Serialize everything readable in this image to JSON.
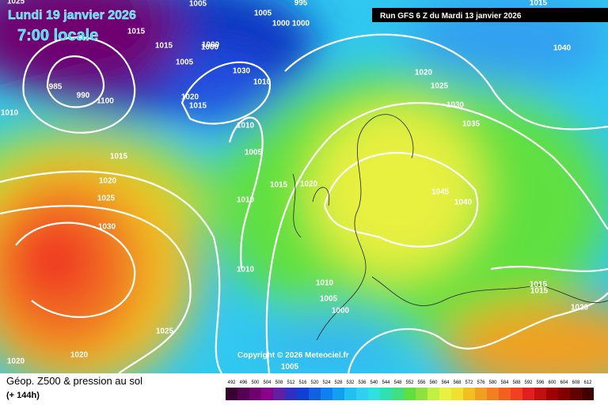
{
  "header": {
    "date": "Lundi 19 janvier 2026",
    "time": "7:00 locale",
    "run": "Run GFS 6 Z du Mardi 13 janvier 2026"
  },
  "copyright": "Copyright © 2026 Meteociel.fr",
  "footer": {
    "title": "Géop. Z500 & pression au sol",
    "lead": "(+ 144h)"
  },
  "isobar_labels": [
    "1015",
    "1005",
    "995",
    "1005",
    "1000",
    "1000",
    "1000",
    "1015",
    "1005",
    "1000",
    "1030",
    "1010",
    "985",
    "990",
    "1100",
    "1020",
    "1015",
    "1010",
    "1010",
    "1005",
    "1015",
    "1020",
    "1025",
    "1030",
    "1015",
    "1010",
    "1010",
    "1020",
    "1025",
    "1030",
    "1035",
    "1040",
    "1045",
    "1040",
    "1025",
    "1015",
    "1020",
    "1010",
    "1005",
    "1000",
    "1005",
    "1025",
    "1020",
    "1020",
    "1015",
    "1020",
    "1015"
  ],
  "legend": {
    "labels": [
      "492",
      "496",
      "500",
      "504",
      "508",
      "512",
      "516",
      "520",
      "524",
      "528",
      "532",
      "536",
      "540",
      "544",
      "548",
      "552",
      "556",
      "560",
      "564",
      "568",
      "572",
      "576",
      "580",
      "584",
      "588",
      "592",
      "596",
      "600",
      "604",
      "608",
      "612"
    ]
  }
}
